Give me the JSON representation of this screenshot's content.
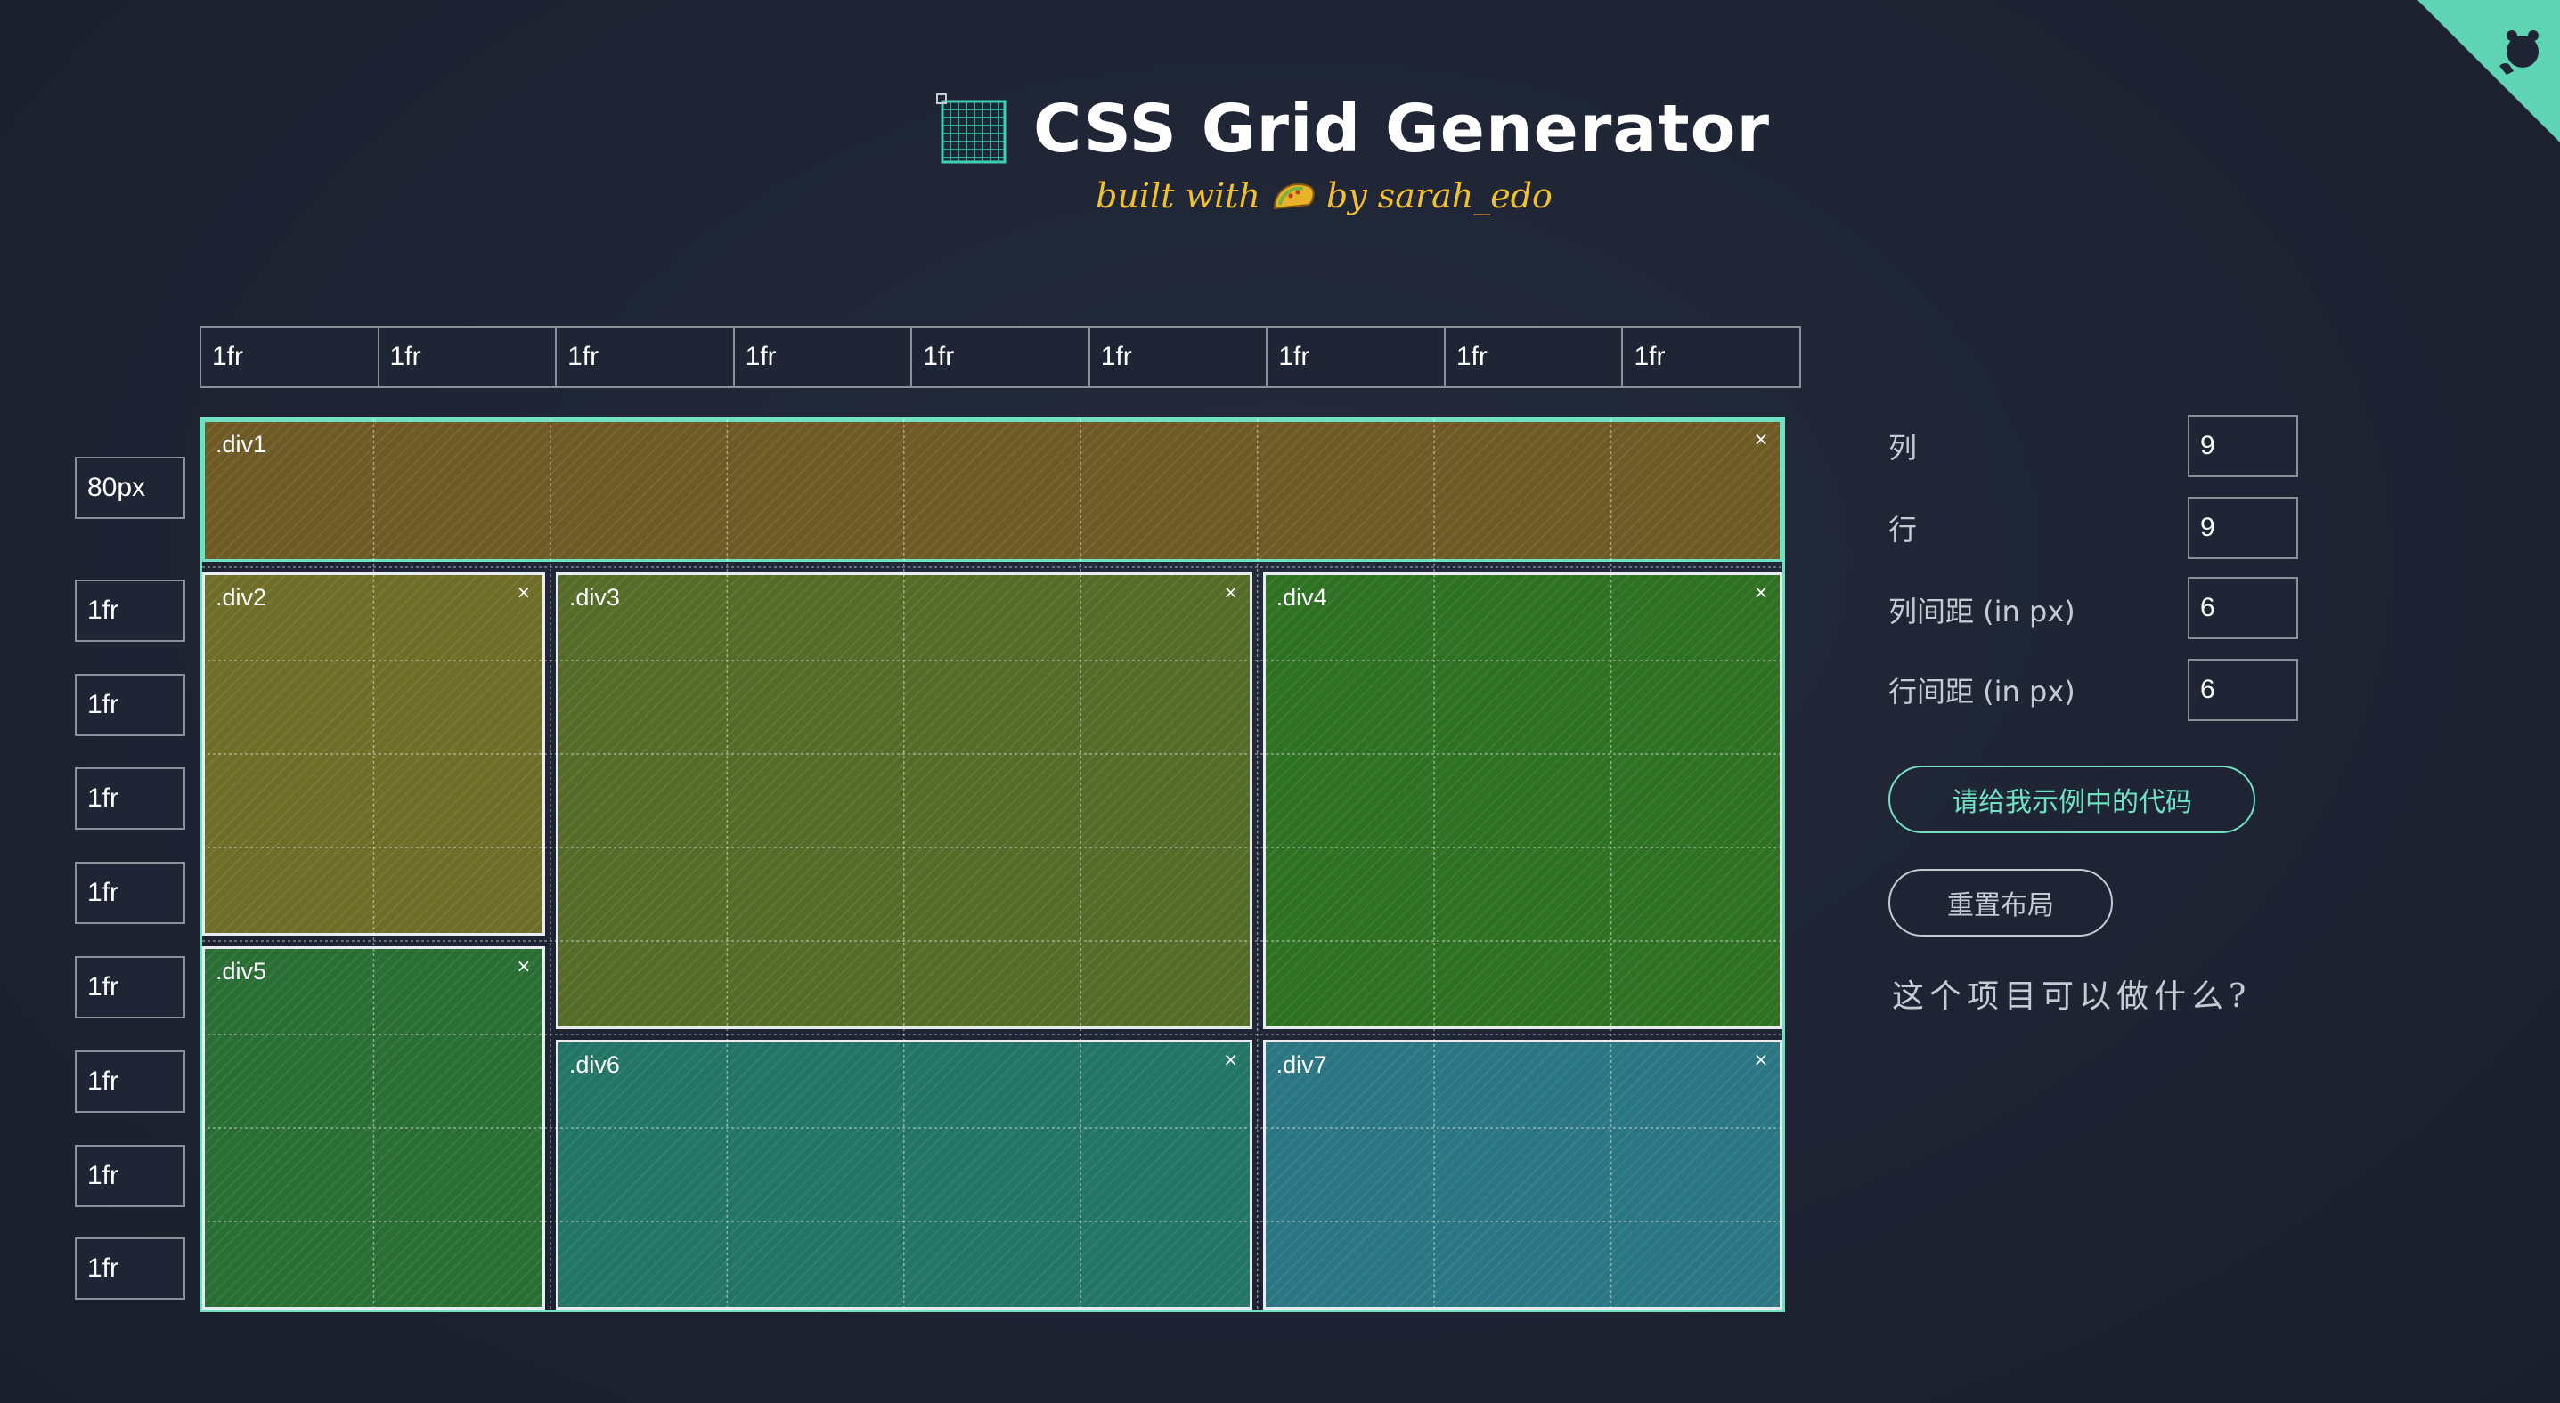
{
  "header": {
    "title": "CSS Grid Generator",
    "built_with": "built with",
    "by_author": "by sarah_edo",
    "logo_icon": "grid-logo-icon",
    "taco_icon": "taco-icon",
    "corner_icon": "github-octocat-icon"
  },
  "column_units": [
    "1fr",
    "1fr",
    "1fr",
    "1fr",
    "1fr",
    "1fr",
    "1fr",
    "1fr",
    "1fr"
  ],
  "row_units": [
    "80px",
    "1fr",
    "1fr",
    "1fr",
    "1fr",
    "1fr",
    "1fr",
    "1fr",
    "1fr"
  ],
  "grid": {
    "columns": 9,
    "rows": 9,
    "close_symbol": "×",
    "items": [
      {
        "label": ".div1",
        "col_start": 1,
        "col_end": 10,
        "row_start": 1,
        "row_end": 2,
        "color": "#6e5a26"
      },
      {
        "label": ".div2",
        "col_start": 1,
        "col_end": 3,
        "row_start": 2,
        "row_end": 6,
        "color": "#6f6e28"
      },
      {
        "label": ".div3",
        "col_start": 3,
        "col_end": 7,
        "row_start": 2,
        "row_end": 7,
        "color": "#556c28"
      },
      {
        "label": ".div4",
        "col_start": 7,
        "col_end": 10,
        "row_start": 2,
        "row_end": 7,
        "color": "#2f7123"
      },
      {
        "label": ".div5",
        "col_start": 1,
        "col_end": 3,
        "row_start": 6,
        "row_end": 10,
        "color": "#2b6e35"
      },
      {
        "label": ".div6",
        "col_start": 3,
        "col_end": 7,
        "row_start": 7,
        "row_end": 10,
        "color": "#237565"
      },
      {
        "label": ".div7",
        "col_start": 7,
        "col_end": 10,
        "row_start": 7,
        "row_end": 10,
        "color": "#2a7682"
      }
    ]
  },
  "controls": {
    "columns_label": "列",
    "columns_value": "9",
    "rows_label": "行",
    "rows_value": "9",
    "col_gap_label": "列间距 (in px)",
    "col_gap_value": "6",
    "row_gap_label": "行间距 (in px)",
    "row_gap_value": "6",
    "show_code_button": "请给我示例中的代码",
    "reset_button": "重置布局",
    "about_link": "这个项目可以做什么?"
  },
  "colors": {
    "background": "#1e2433",
    "accent": "#6fe0c2",
    "byline": "#f2c12e"
  }
}
